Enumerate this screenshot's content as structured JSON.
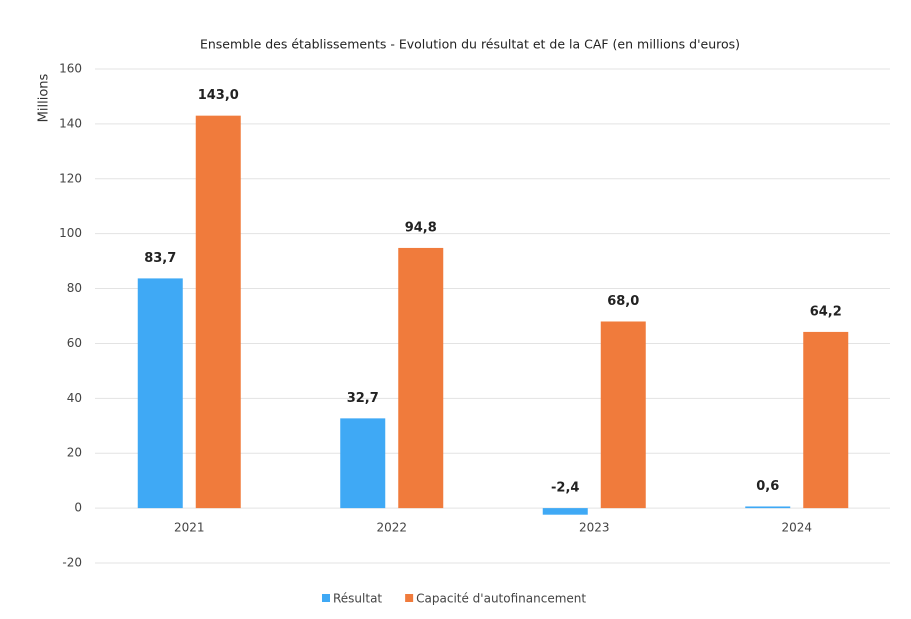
{
  "chart_data": {
    "type": "bar",
    "title": "Ensemble des établissements - Evolution du résultat et de la CAF (en millions d'euros)",
    "y_label": "Millions",
    "categories": [
      "2021",
      "2022",
      "2023",
      "2024"
    ],
    "series": [
      {
        "name": "Résultat",
        "color": "#3fa9f5",
        "values": [
          83.7,
          32.7,
          -2.4,
          0.6
        ],
        "value_labels": [
          "83,7",
          "32,7",
          "-2,4",
          "0,6"
        ]
      },
      {
        "name": "Capacité d'autofinancement",
        "color": "#f07b3c",
        "values": [
          143.0,
          94.8,
          68.0,
          64.2
        ],
        "value_labels": [
          "143,0",
          "94,8",
          "68,0",
          "64,2"
        ]
      }
    ],
    "ylim": [
      -20,
      160
    ],
    "yticks": [
      -20,
      0,
      20,
      40,
      60,
      80,
      100,
      120,
      140,
      160
    ],
    "grid": true,
    "legend": "bottom"
  }
}
